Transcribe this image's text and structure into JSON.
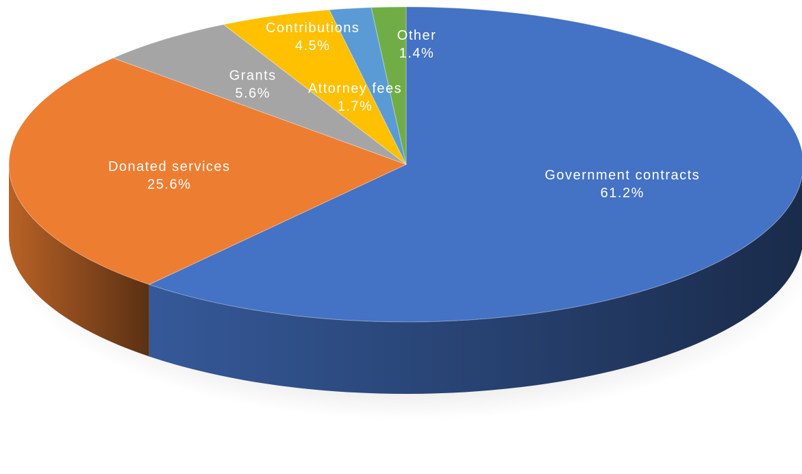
{
  "chart_data": {
    "type": "pie",
    "style": "3d",
    "start_angle": "12 o'clock",
    "direction": "clockwise",
    "slices": [
      {
        "label": "Government contracts",
        "value": 61.2,
        "value_label": "61.2%",
        "color": "#4472C4"
      },
      {
        "label": "Donated services",
        "value": 25.6,
        "value_label": "25.6%",
        "color": "#ED7D31"
      },
      {
        "label": "Grants",
        "value": 5.6,
        "value_label": "5.6%",
        "color": "#A5A5A5"
      },
      {
        "label": "Contributions",
        "value": 4.5,
        "value_label": "4.5%",
        "color": "#FFC000"
      },
      {
        "label": "Attorney fees",
        "value": 1.7,
        "value_label": "1.7%",
        "color": "#5B9BD5"
      },
      {
        "label": "Other",
        "value": 1.4,
        "value_label": "1.4%",
        "color": "#70AD47"
      }
    ],
    "legend": "none",
    "data_labels": "category name and percentage"
  }
}
